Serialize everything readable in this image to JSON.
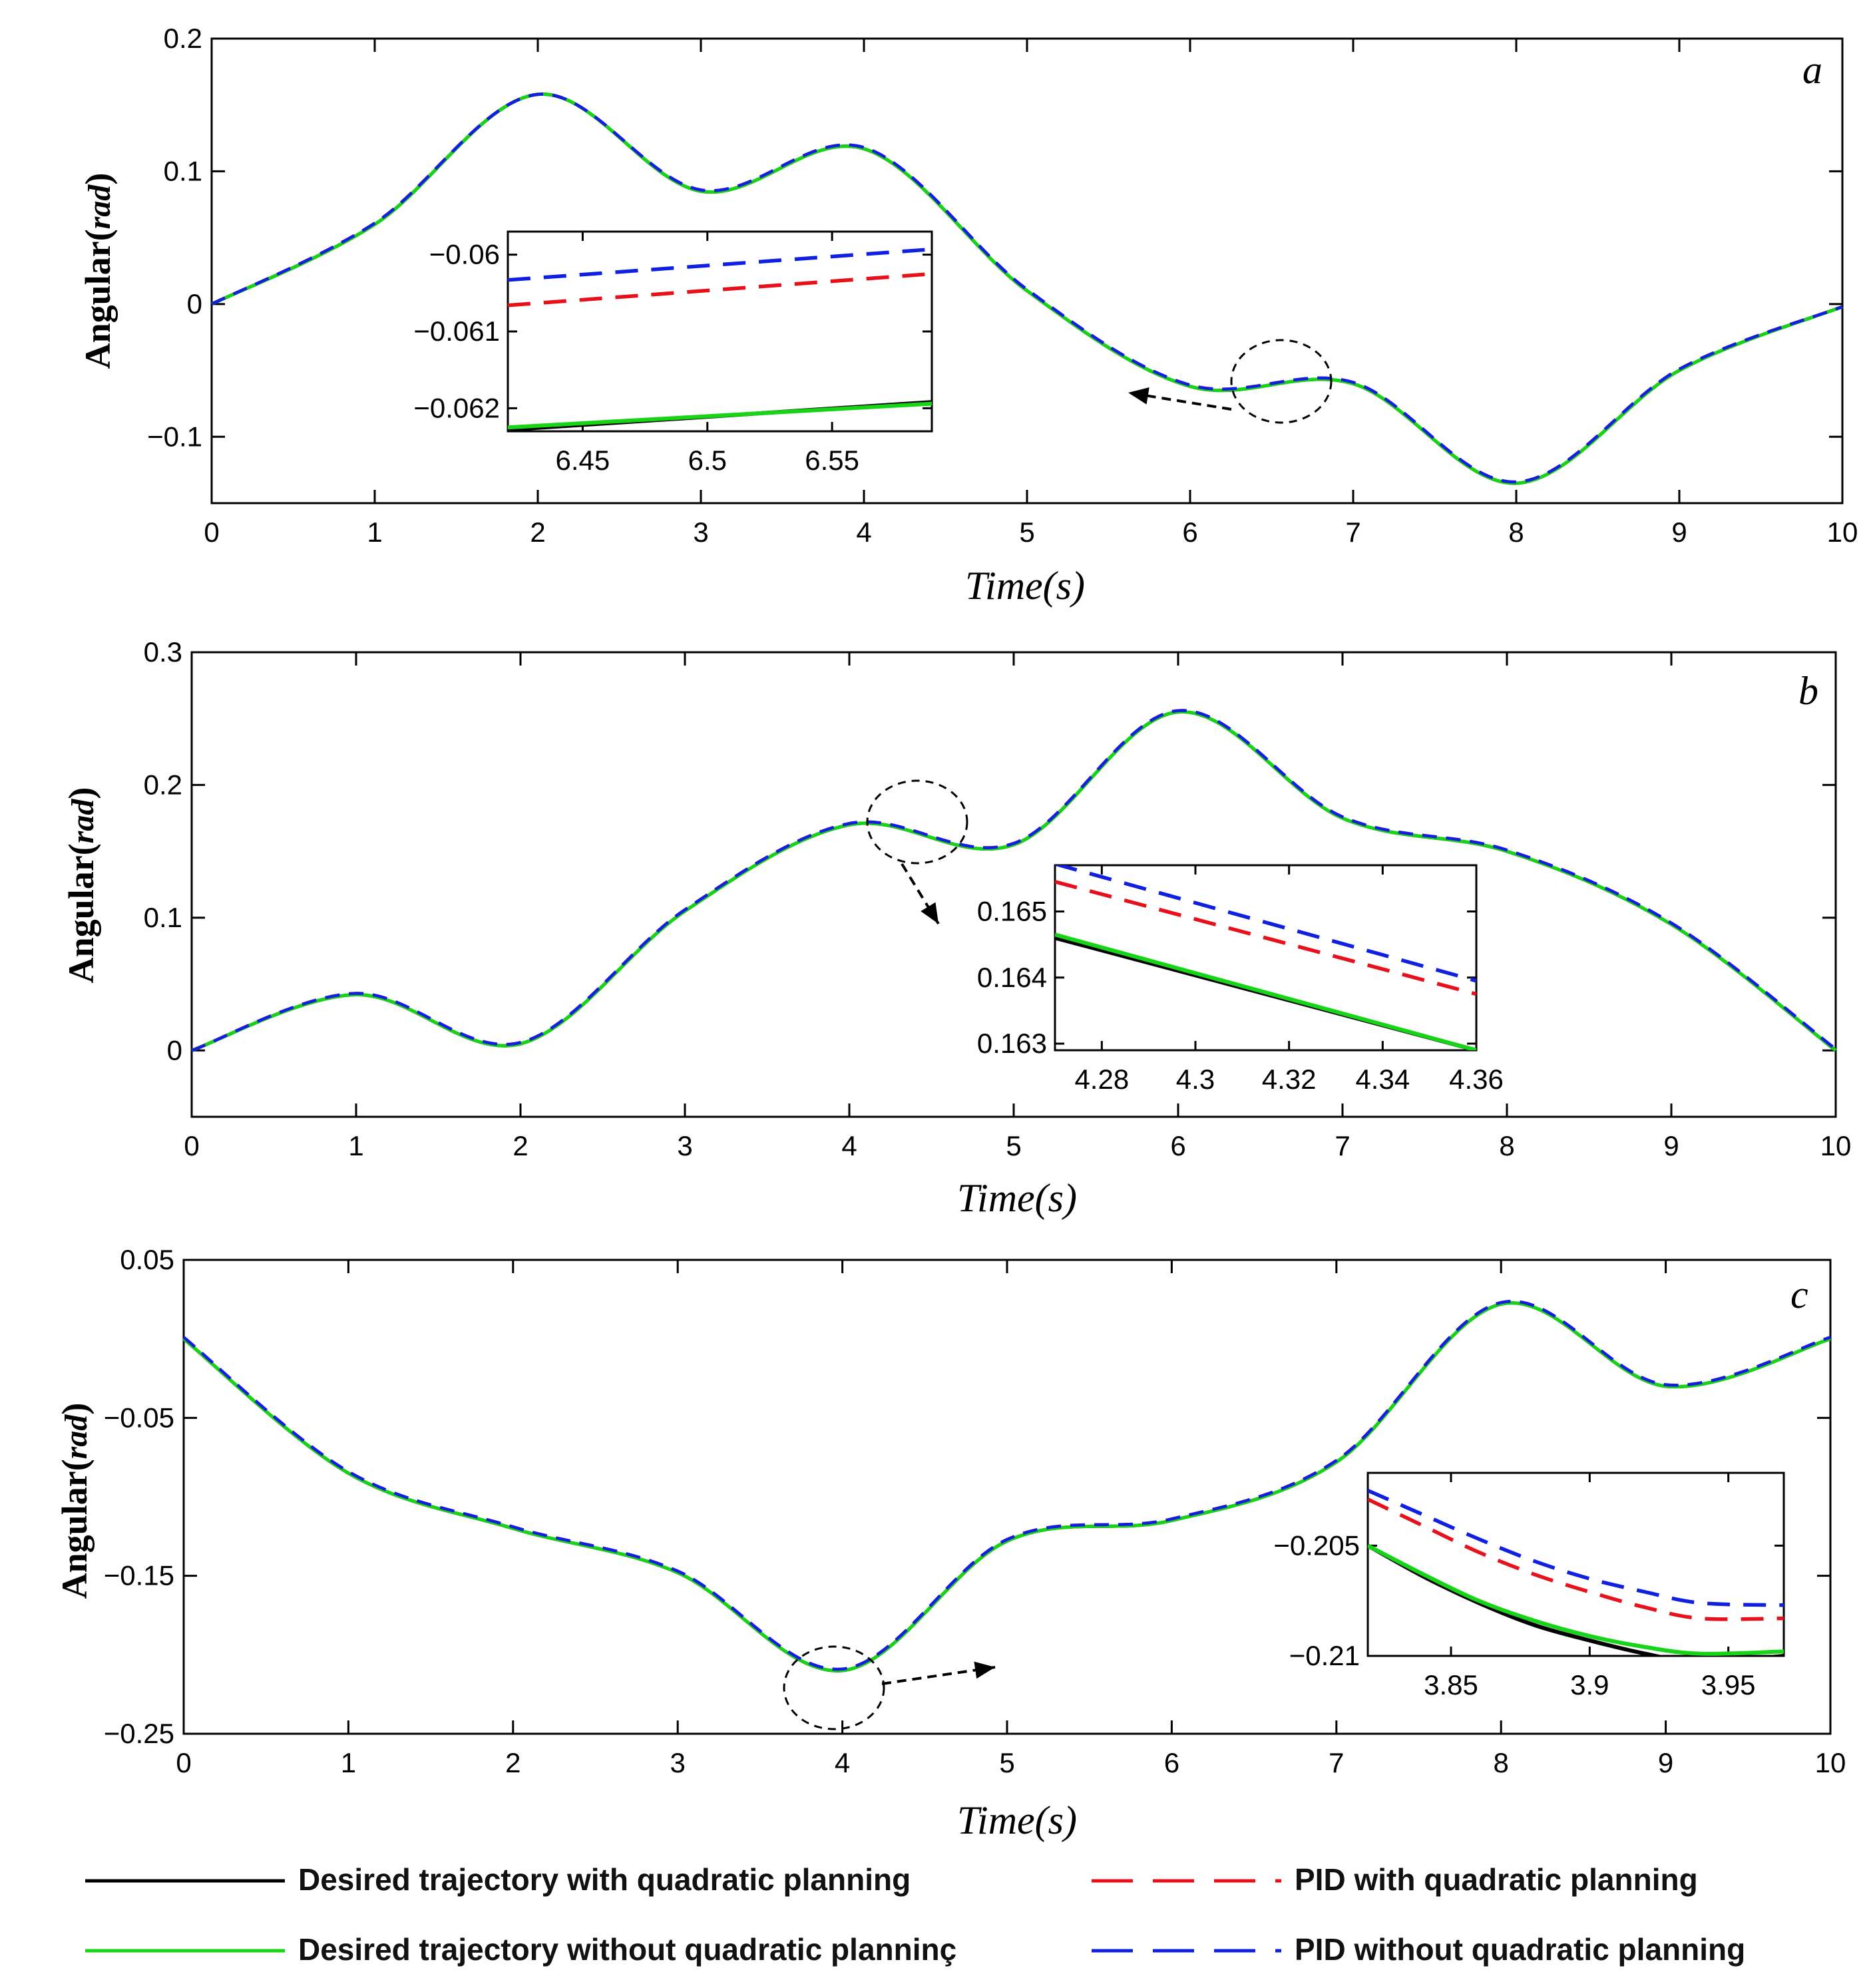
{
  "figure": {
    "legend": [
      {
        "label": "Desired trajectory with quadratic planning",
        "color": "#000000",
        "dashed": false
      },
      {
        "label": "PID with quadratic planning",
        "color": "#e8101a",
        "dashed": true
      },
      {
        "label": "Desired trajectory without quadratic planninç",
        "color": "#16d416",
        "dashed": false
      },
      {
        "label": "PID without quadratic planning",
        "color": "#1020e0",
        "dashed": true
      }
    ]
  },
  "chart_data": [
    {
      "type": "line",
      "panel": "a",
      "xlabel": "Time(s)",
      "ylabel": "Angular(rad)",
      "ylabel_main": "Angular(",
      "ylabel_unit": "rad",
      "ylabel_close": ")",
      "xlabel_main": "Time(",
      "xlabel_unit": "s",
      "xlabel_close": ")",
      "xlim": [
        0,
        10
      ],
      "ylim": [
        -0.15,
        0.2
      ],
      "xticks": [
        0,
        1,
        2,
        3,
        4,
        5,
        6,
        7,
        8,
        9,
        10
      ],
      "xtick_labels": [
        "0",
        "1",
        "2",
        "3",
        "4",
        "5",
        "6",
        "7",
        "8",
        "9",
        "10"
      ],
      "yticks": [
        -0.1,
        0,
        0.1,
        0.2
      ],
      "ytick_labels": [
        "−0.1",
        "0",
        "0.1",
        "0.2"
      ],
      "x": [
        0,
        1,
        2,
        3,
        4,
        5,
        6,
        7,
        8,
        9,
        10
      ],
      "series": [
        {
          "name": "Desired trajectory with quadratic planning",
          "values": [
            0,
            0.06,
            0.158,
            0.085,
            0.117,
            0.01,
            -0.062,
            -0.06,
            -0.135,
            -0.05,
            -0.002
          ]
        },
        {
          "name": "Desired trajectory without quadratic planning",
          "values": [
            0,
            0.06,
            0.158,
            0.085,
            0.117,
            0.01,
            -0.062,
            -0.06,
            -0.135,
            -0.05,
            -0.002
          ]
        },
        {
          "name": "PID with quadratic planning",
          "values": [
            0,
            0.061,
            0.158,
            0.086,
            0.118,
            0.011,
            -0.061,
            -0.059,
            -0.134,
            -0.049,
            -0.002
          ]
        },
        {
          "name": "PID without quadratic planning",
          "values": [
            0,
            0.061,
            0.158,
            0.086,
            0.118,
            0.011,
            -0.061,
            -0.059,
            -0.134,
            -0.049,
            -0.002
          ]
        }
      ],
      "highlight": {
        "x": 6.55,
        "y": -0.061
      },
      "inset": {
        "xlim": [
          6.42,
          6.59
        ],
        "ylim": [
          -0.0623,
          -0.0597
        ],
        "xticks": [
          6.45,
          6.5,
          6.55
        ],
        "xtick_labels": [
          "6.45",
          "6.5",
          "6.55"
        ],
        "yticks": [
          -0.06,
          -0.061,
          -0.062
        ],
        "ytick_labels": [
          "−0.06",
          "−0.061",
          "−0.062"
        ],
        "x": [
          6.42,
          6.59
        ],
        "series": [
          {
            "name": "Desired trajectory with quadratic planning",
            "values": [
              -0.06228,
              -0.06192
            ]
          },
          {
            "name": "Desired trajectory without quadratic planning",
            "values": [
              -0.06225,
              -0.06194
            ]
          },
          {
            "name": "PID with quadratic planning",
            "values": [
              -0.06066,
              -0.06025
            ]
          },
          {
            "name": "PID without quadratic planning",
            "values": [
              -0.06033,
              -0.05993
            ]
          }
        ]
      }
    },
    {
      "type": "line",
      "panel": "b",
      "xlabel": "Time(s)",
      "ylabel": "Angular(rad)",
      "ylabel_main": "Angular(",
      "ylabel_unit": "rad",
      "ylabel_close": ")",
      "xlabel_main": "Time(",
      "xlabel_unit": "s",
      "xlabel_close": ")",
      "xlim": [
        0,
        10
      ],
      "ylim": [
        -0.05,
        0.3
      ],
      "xticks": [
        0,
        1,
        2,
        3,
        4,
        5,
        6,
        7,
        8,
        9,
        10
      ],
      "xtick_labels": [
        "0",
        "1",
        "2",
        "3",
        "4",
        "5",
        "6",
        "7",
        "8",
        "9",
        "10"
      ],
      "yticks": [
        0,
        0.1,
        0.2,
        0.3
      ],
      "ytick_labels": [
        "0",
        "0.1",
        "0.2",
        "0.3"
      ],
      "x": [
        0,
        1,
        2,
        3,
        4,
        5,
        6,
        7,
        8,
        9,
        10
      ],
      "series": [
        {
          "name": "Desired trajectory with quadratic planning",
          "values": [
            0,
            0.042,
            0.005,
            0.105,
            0.17,
            0.155,
            0.255,
            0.175,
            0.15,
            0.095,
            0
          ]
        },
        {
          "name": "Desired trajectory without quadratic planning",
          "values": [
            0,
            0.042,
            0.005,
            0.105,
            0.17,
            0.155,
            0.255,
            0.175,
            0.15,
            0.095,
            0
          ]
        },
        {
          "name": "PID with quadratic planning",
          "values": [
            0,
            0.043,
            0.006,
            0.106,
            0.171,
            0.156,
            0.256,
            0.176,
            0.151,
            0.096,
            0.001
          ]
        },
        {
          "name": "PID without quadratic planning",
          "values": [
            0,
            0.043,
            0.006,
            0.106,
            0.171,
            0.156,
            0.256,
            0.176,
            0.151,
            0.096,
            0.001
          ]
        }
      ],
      "highlight": {
        "x": 4.45,
        "y": 0.165
      },
      "inset": {
        "xlim": [
          4.27,
          4.36
        ],
        "ylim": [
          0.1629,
          0.1657
        ],
        "xticks": [
          4.28,
          4.3,
          4.32,
          4.34,
          4.36
        ],
        "xtick_labels": [
          "4.28",
          "4.3",
          "4.32",
          "4.34",
          "4.36"
        ],
        "yticks": [
          0.165,
          0.164,
          0.163
        ],
        "ytick_labels": [
          "0.165",
          "0.164",
          "0.163"
        ],
        "x": [
          4.27,
          4.36
        ],
        "series": [
          {
            "name": "Desired trajectory with quadratic planning",
            "values": [
              0.1646,
              0.1629
            ]
          },
          {
            "name": "Desired trajectory without quadratic planning",
            "values": [
              0.16465,
              0.1629
            ]
          },
          {
            "name": "PID with quadratic planning",
            "values": [
              0.16545,
              0.16375
            ]
          },
          {
            "name": "PID without quadratic planning",
            "values": [
              0.16572,
              0.16395
            ]
          }
        ]
      }
    },
    {
      "type": "line",
      "panel": "c",
      "xlabel": "Time(s)",
      "ylabel": "Angular(rad)",
      "ylabel_main": "Angular(",
      "ylabel_unit": "rad",
      "ylabel_close": ")",
      "xlabel_main": "Time(",
      "xlabel_unit": "s",
      "xlabel_close": ")",
      "xlim": [
        0,
        10
      ],
      "ylim": [
        -0.25,
        0.05
      ],
      "xticks": [
        0,
        1,
        2,
        3,
        4,
        5,
        6,
        7,
        8,
        9,
        10
      ],
      "xtick_labels": [
        "0",
        "1",
        "2",
        "3",
        "4",
        "5",
        "6",
        "7",
        "8",
        "9",
        "10"
      ],
      "yticks": [
        0.05,
        -0.05,
        -0.15,
        -0.25
      ],
      "ytick_labels": [
        "0.05",
        "−0.05",
        "−0.15",
        "−0.25"
      ],
      "x": [
        0,
        1,
        2,
        3,
        4,
        5,
        6,
        7,
        8,
        9,
        10
      ],
      "series": [
        {
          "name": "Desired trajectory with quadratic planning",
          "values": [
            0,
            -0.085,
            -0.12,
            -0.148,
            -0.21,
            -0.128,
            -0.115,
            -0.078,
            0.022,
            -0.03,
            0
          ]
        },
        {
          "name": "Desired trajectory without quadratic planning",
          "values": [
            0,
            -0.085,
            -0.12,
            -0.148,
            -0.21,
            -0.128,
            -0.115,
            -0.078,
            0.022,
            -0.03,
            0
          ]
        },
        {
          "name": "PID with quadratic planning",
          "values": [
            0.001,
            -0.084,
            -0.119,
            -0.147,
            -0.209,
            -0.127,
            -0.114,
            -0.077,
            0.023,
            -0.029,
            0.001
          ]
        },
        {
          "name": "PID without quadratic planning",
          "values": [
            0.001,
            -0.084,
            -0.119,
            -0.147,
            -0.209,
            -0.127,
            -0.114,
            -0.077,
            0.023,
            -0.029,
            0.001
          ]
        }
      ],
      "highlight": {
        "x": 4.0,
        "y": -0.205
      },
      "inset": {
        "xlim": [
          3.82,
          3.97
        ],
        "ylim": [
          -0.21,
          -0.2017
        ],
        "xticks": [
          3.85,
          3.9,
          3.95
        ],
        "xtick_labels": [
          "3.85",
          "3.9",
          "3.95"
        ],
        "yticks": [
          -0.205,
          -0.21
        ],
        "ytick_labels": [
          "−0.205",
          "−0.21"
        ],
        "x": [
          3.82,
          3.84,
          3.86,
          3.88,
          3.9,
          3.92,
          3.94,
          3.97
        ],
        "series": [
          {
            "name": "Desired trajectory with quadratic planning",
            "values": [
              -0.205,
              -0.2064,
              -0.2076,
              -0.2086,
              -0.2093,
              -0.2099,
              -0.2103,
              -0.21
            ]
          },
          {
            "name": "Desired trajectory without quadratic planning",
            "values": [
              -0.205,
              -0.2063,
              -0.2075,
              -0.2084,
              -0.2091,
              -0.2096,
              -0.2099,
              -0.2098
            ]
          },
          {
            "name": "PID with quadratic planning",
            "values": [
              -0.2029,
              -0.2041,
              -0.2053,
              -0.2063,
              -0.2071,
              -0.2078,
              -0.2083,
              -0.2083
            ]
          },
          {
            "name": "PID without quadratic planning",
            "values": [
              -0.2025,
              -0.2036,
              -0.2047,
              -0.2057,
              -0.2065,
              -0.2071,
              -0.2076,
              -0.2077
            ]
          }
        ]
      }
    }
  ]
}
